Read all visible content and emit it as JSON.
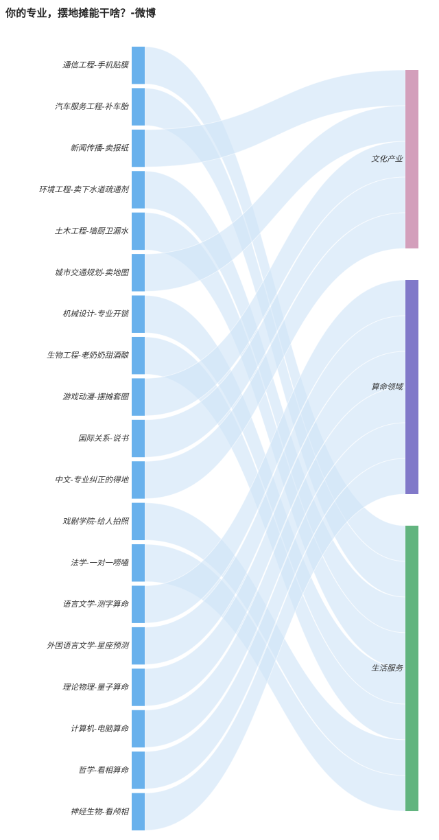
{
  "title": "你的专业，摆地摊能干啥？-微博",
  "chart_data": {
    "type": "sankey",
    "title": "你的专业，摆地摊能干啥？-微博",
    "sources": [
      "通信工程-手机贴膜",
      "汽车服务工程-补车胎",
      "新闻传播-卖报纸",
      "环境工程-卖下水道疏通剂",
      "土木工程-墙厨卫漏水",
      "城市交通规划-卖地图",
      "机械设计-专业开锁",
      "生物工程-老奶奶甜酒酿",
      "游戏动漫-摆摊套圈",
      "国际关系-说书",
      "中文-专业纠正的得地",
      "戏剧学院-给人拍照",
      "法学-一对一唠嗑",
      "语言文学-测字算命",
      "外国语言文学-星座预测",
      "理论物理-量子算命",
      "计算机-电脑算命",
      "哲学-看相算命",
      "神经生物-看颅相"
    ],
    "targets": [
      {
        "name": "文化产业",
        "color": "#d39fbb"
      },
      {
        "name": "算命领域",
        "color": "#8179c9"
      },
      {
        "name": "生活服务",
        "color": "#62b47f"
      }
    ],
    "source_color": "#69b1ec",
    "link_color": "#cfe3f7",
    "links": [
      {
        "source": "通信工程-手机贴膜",
        "target": "生活服务",
        "value": 1
      },
      {
        "source": "汽车服务工程-补车胎",
        "target": "生活服务",
        "value": 1
      },
      {
        "source": "新闻传播-卖报纸",
        "target": "文化产业",
        "value": 1
      },
      {
        "source": "环境工程-卖下水道疏通剂",
        "target": "生活服务",
        "value": 1
      },
      {
        "source": "土木工程-墙厨卫漏水",
        "target": "生活服务",
        "value": 1
      },
      {
        "source": "城市交通规划-卖地图",
        "target": "文化产业",
        "value": 1
      },
      {
        "source": "机械设计-专业开锁",
        "target": "生活服务",
        "value": 1
      },
      {
        "source": "生物工程-老奶奶甜酒酿",
        "target": "生活服务",
        "value": 1
      },
      {
        "source": "游戏动漫-摆摊套圈",
        "target": "文化产业",
        "value": 1
      },
      {
        "source": "国际关系-说书",
        "target": "文化产业",
        "value": 1
      },
      {
        "source": "中文-专业纠正的得地",
        "target": "文化产业",
        "value": 1
      },
      {
        "source": "戏剧学院-给人拍照",
        "target": "生活服务",
        "value": 1
      },
      {
        "source": "法学-一对一唠嗑",
        "target": "生活服务",
        "value": 1
      },
      {
        "source": "语言文学-测字算命",
        "target": "算命领域",
        "value": 1
      },
      {
        "source": "外国语言文学-星座预测",
        "target": "算命领域",
        "value": 1
      },
      {
        "source": "理论物理-量子算命",
        "target": "算命领域",
        "value": 1
      },
      {
        "source": "计算机-电脑算命",
        "target": "算命领域",
        "value": 1
      },
      {
        "source": "哲学-看相算命",
        "target": "算命领域",
        "value": 1
      },
      {
        "source": "神经生物-看颅相",
        "target": "算命领域",
        "value": 1
      }
    ]
  }
}
